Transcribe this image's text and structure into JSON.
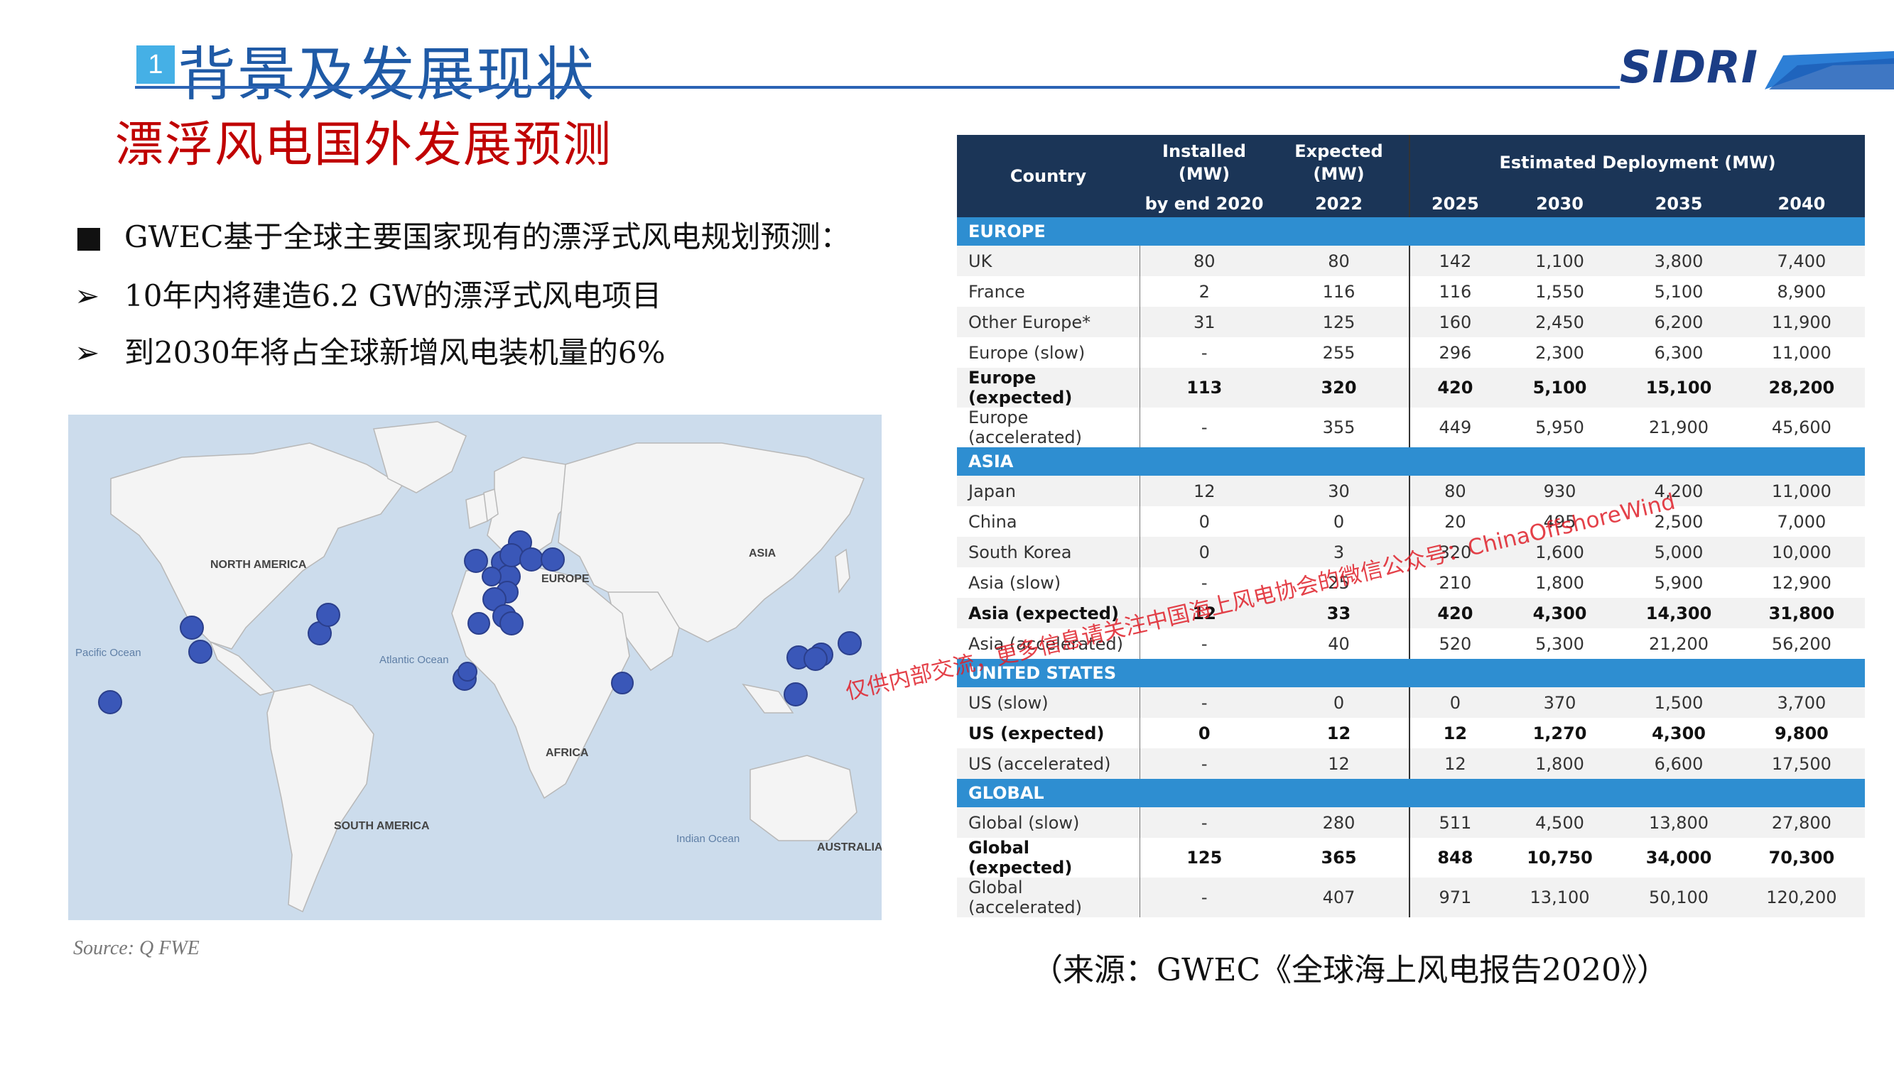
{
  "header": {
    "section_number": "1",
    "section_title": "背景及发展现状",
    "logo": "SIDRI"
  },
  "sub_title": "漂浮风电国外发展预测",
  "bullets": {
    "b1_mark": "■",
    "b1": "GWEC基于全球主要国家现有的漂浮式风电规划预测：",
    "b2_mark": "➢",
    "b2": "10年内将建造6.2 GW的漂浮式风电项目",
    "b3_mark": "➢",
    "b3": "到2030年将占全球新增风电装机量的6%"
  },
  "map": {
    "labels": {
      "north_america": "NORTH AMERICA",
      "europe": "EUROPE",
      "asia": "ASIA",
      "africa": "AFRICA",
      "south_america": "SOUTH AMERICA",
      "australia": "AUSTRALIA",
      "pacific": "Pacific Ocean",
      "atlantic": "Atlantic Ocean",
      "indian": "Indian Ocean"
    },
    "source": "Source: Q FWE",
    "marker_color": "#3a57b8"
  },
  "table": {
    "headers": {
      "country": "Country",
      "installed": [
        "Installed",
        "(MW)",
        "by end 2020"
      ],
      "expected": [
        "Expected",
        "(MW)",
        "2022"
      ],
      "estimated": "Estimated Deployment (MW)",
      "years": [
        "2025",
        "2030",
        "2035",
        "2040"
      ]
    },
    "sections": [
      {
        "name": "EUROPE",
        "rows": [
          {
            "country": "UK",
            "vals": [
              "80",
              "80",
              "142",
              "1,100",
              "3,800",
              "7,400"
            ],
            "bold": false
          },
          {
            "country": "France",
            "vals": [
              "2",
              "116",
              "116",
              "1,550",
              "5,100",
              "8,900"
            ],
            "bold": false
          },
          {
            "country": "Other Europe*",
            "vals": [
              "31",
              "125",
              "160",
              "2,450",
              "6,200",
              "11,900"
            ],
            "bold": false
          },
          {
            "country": "Europe (slow)",
            "vals": [
              "-",
              "255",
              "296",
              "2,300",
              "6,300",
              "11,000"
            ],
            "bold": false
          },
          {
            "country": "Europe (expected)",
            "vals": [
              "113",
              "320",
              "420",
              "5,100",
              "15,100",
              "28,200"
            ],
            "bold": true
          },
          {
            "country": "Europe (accelerated)",
            "vals": [
              "-",
              "355",
              "449",
              "5,950",
              "21,900",
              "45,600"
            ],
            "bold": false
          }
        ]
      },
      {
        "name": "ASIA",
        "rows": [
          {
            "country": "Japan",
            "vals": [
              "12",
              "30",
              "80",
              "930",
              "4,200",
              "11,000"
            ],
            "bold": false
          },
          {
            "country": "China",
            "vals": [
              "0",
              "0",
              "20",
              "495",
              "2,500",
              "7,000"
            ],
            "bold": false
          },
          {
            "country": "South Korea",
            "vals": [
              "0",
              "3",
              "320",
              "1,600",
              "5,000",
              "10,000"
            ],
            "bold": false
          },
          {
            "country": "Asia (slow)",
            "vals": [
              "-",
              "25",
              "210",
              "1,800",
              "5,900",
              "12,900"
            ],
            "bold": false
          },
          {
            "country": "Asia (expected)",
            "vals": [
              "12",
              "33",
              "420",
              "4,300",
              "14,300",
              "31,800"
            ],
            "bold": true
          },
          {
            "country": "Asia (accelerated)",
            "vals": [
              "-",
              "40",
              "520",
              "5,300",
              "21,200",
              "56,200"
            ],
            "bold": false
          }
        ]
      },
      {
        "name": "UNITED STATES",
        "rows": [
          {
            "country": "US (slow)",
            "vals": [
              "-",
              "0",
              "0",
              "370",
              "1,500",
              "3,700"
            ],
            "bold": false
          },
          {
            "country": "US (expected)",
            "vals": [
              "0",
              "12",
              "12",
              "1,270",
              "4,300",
              "9,800"
            ],
            "bold": true
          },
          {
            "country": "US (accelerated)",
            "vals": [
              "-",
              "12",
              "12",
              "1,800",
              "6,600",
              "17,500"
            ],
            "bold": false
          }
        ]
      },
      {
        "name": "GLOBAL",
        "rows": [
          {
            "country": "Global (slow)",
            "vals": [
              "-",
              "280",
              "511",
              "4,500",
              "13,800",
              "27,800"
            ],
            "bold": false
          },
          {
            "country": "Global (expected)",
            "vals": [
              "125",
              "365",
              "848",
              "10,750",
              "34,000",
              "70,300"
            ],
            "bold": true
          },
          {
            "country": "Global (accelerated)",
            "vals": [
              "-",
              "407",
              "971",
              "13,100",
              "50,100",
              "120,200"
            ],
            "bold": false
          }
        ]
      }
    ]
  },
  "watermark": "仅供内部交流，更多信息请关注中国海上风电协会的微信公众号：ChinaOffshoreWind",
  "caption": "（来源：GWEC《全球海上风电报告2020》）",
  "colors": {
    "title_blue": "#1f5aa6",
    "subtitle_red": "#c00000",
    "table_header": "#1b3557",
    "section_blue": "#2e8ed1"
  }
}
